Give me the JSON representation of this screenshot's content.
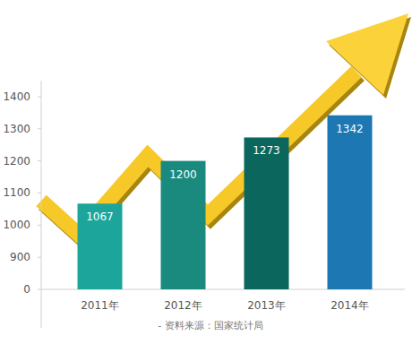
{
  "chart_data": {
    "type": "bar",
    "categories": [
      "2011年",
      "2012年",
      "2013年",
      "2014年"
    ],
    "values": [
      1067,
      1200,
      1273,
      1342
    ],
    "colors": [
      "#1ca69b",
      "#1a8a7f",
      "#0b675d",
      "#1d77b3"
    ],
    "ylim": [
      0,
      1450
    ],
    "yticks": [
      0,
      900,
      1000,
      1100,
      1200,
      1300,
      1400
    ],
    "data_labels": true,
    "grid": false,
    "source": "- 资料来源：国家统计局"
  }
}
